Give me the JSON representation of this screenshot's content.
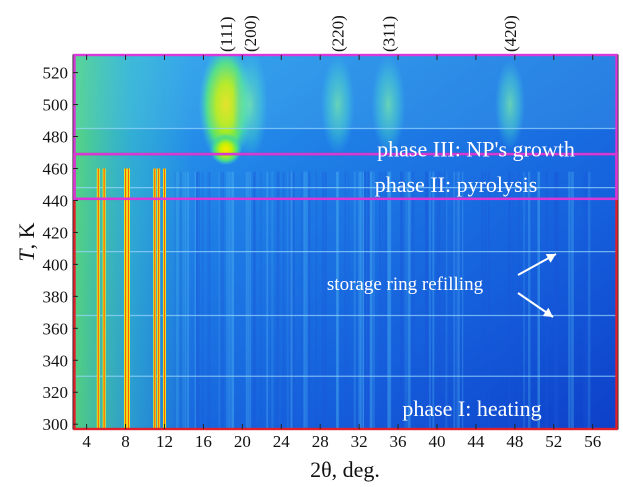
{
  "chart_data": {
    "type": "heatmap",
    "xlabel": "2θ, deg.",
    "ylabel_italic": "T",
    "ylabel_unit": ", K",
    "xlim": [
      2.6,
      58.6
    ],
    "ylim": [
      297,
      531
    ],
    "xticks": [
      4,
      8,
      12,
      16,
      20,
      24,
      28,
      32,
      36,
      40,
      44,
      48,
      52,
      56
    ],
    "yticks": [
      300,
      320,
      340,
      360,
      380,
      400,
      420,
      440,
      460,
      480,
      500,
      520
    ],
    "peak_labels": [
      {
        "label": "(111)",
        "x": 18.3
      },
      {
        "label": "(200)",
        "x": 20.8
      },
      {
        "label": "(220)",
        "x": 29.8
      },
      {
        "label": "(311)",
        "x": 35.0
      },
      {
        "label": "(420)",
        "x": 47.5
      }
    ],
    "phases": [
      {
        "name": "phase I: heating",
        "t_range": [
          297,
          469
        ],
        "color": "#e0202c"
      },
      {
        "name": "phase II: pyrolysis",
        "t_range": [
          441,
          469
        ],
        "color": "#d838d8"
      },
      {
        "name": "phase III: NP's growth",
        "t_range": [
          441,
          531
        ],
        "color": "#d838d8"
      }
    ],
    "annotation": "storage ring refilling",
    "refill_temperatures": [
      408,
      368
    ],
    "precursor_lines_x": [
      5.2,
      5.8,
      8.0,
      8.3,
      11.0,
      11.4,
      12.0
    ]
  }
}
